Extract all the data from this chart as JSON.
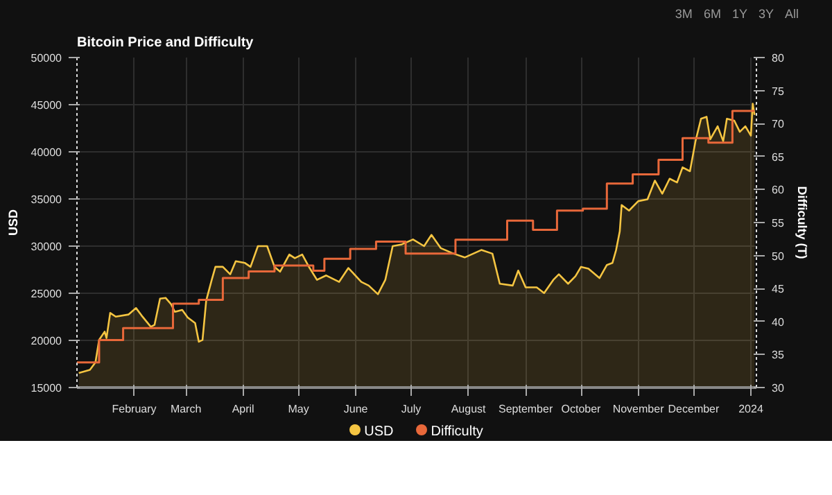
{
  "chart_data": {
    "type": "area",
    "title": "Bitcoin Price and Difficulty",
    "ylabel": "USD",
    "y2label": "Difficulty (T)",
    "annotations": [
      "3M",
      "6M",
      "1Y",
      "3Y",
      "All"
    ],
    "xlim": [
      "2023-01-01",
      "2024-01-04"
    ],
    "xticks": [
      {
        "value": "2023-02-01",
        "label": "February"
      },
      {
        "value": "2023-03-01",
        "label": "March"
      },
      {
        "value": "2023-04-01",
        "label": "April"
      },
      {
        "value": "2023-05-01",
        "label": "May"
      },
      {
        "value": "2023-06-01",
        "label": "June"
      },
      {
        "value": "2023-07-01",
        "label": "July"
      },
      {
        "value": "2023-08-01",
        "label": "August"
      },
      {
        "value": "2023-09-01",
        "label": "September"
      },
      {
        "value": "2023-10-01",
        "label": "October"
      },
      {
        "value": "2023-11-01",
        "label": "November"
      },
      {
        "value": "2023-12-01",
        "label": "December"
      },
      {
        "value": "2024-01-01",
        "label": "2024"
      }
    ],
    "ylim": [
      15000,
      50000
    ],
    "yticks": [
      15000,
      20000,
      25000,
      30000,
      35000,
      40000,
      45000,
      50000
    ],
    "y2lim": [
      30,
      80
    ],
    "y2ticks": [
      30,
      35,
      40,
      45,
      50,
      55,
      60,
      65,
      70,
      75,
      80
    ],
    "grid": true,
    "legend": "bottom",
    "marker": "none",
    "line_style": "solid",
    "series": [
      {
        "name": "USD",
        "color": "#f5c542",
        "x": [
          "2023-01-02",
          "2023-01-08",
          "2023-01-11",
          "2023-01-13",
          "2023-01-16",
          "2023-01-17",
          "2023-01-19",
          "2023-01-22",
          "2023-01-29",
          "2023-02-02",
          "2023-02-05",
          "2023-02-10",
          "2023-02-12",
          "2023-02-15",
          "2023-02-18",
          "2023-02-21",
          "2023-02-23",
          "2023-02-27",
          "2023-03-02",
          "2023-03-06",
          "2023-03-08",
          "2023-03-10",
          "2023-03-12",
          "2023-03-15",
          "2023-03-17",
          "2023-03-21",
          "2023-03-25",
          "2023-03-28",
          "2023-04-02",
          "2023-04-05",
          "2023-04-09",
          "2023-04-14",
          "2023-04-18",
          "2023-04-21",
          "2023-04-26",
          "2023-04-29",
          "2023-05-03",
          "2023-05-07",
          "2023-05-11",
          "2023-05-16",
          "2023-05-23",
          "2023-05-28",
          "2023-06-04",
          "2023-06-08",
          "2023-06-13",
          "2023-06-17",
          "2023-06-21",
          "2023-06-26",
          "2023-07-02",
          "2023-07-08",
          "2023-07-12",
          "2023-07-17",
          "2023-07-24",
          "2023-07-30",
          "2023-08-08",
          "2023-08-14",
          "2023-08-18",
          "2023-08-25",
          "2023-08-28",
          "2023-09-01",
          "2023-09-07",
          "2023-09-11",
          "2023-09-16",
          "2023-09-19",
          "2023-09-24",
          "2023-09-28",
          "2023-10-01",
          "2023-10-05",
          "2023-10-11",
          "2023-10-15",
          "2023-10-18",
          "2023-10-20",
          "2023-10-22",
          "2023-10-23",
          "2023-10-27",
          "2023-11-01",
          "2023-11-06",
          "2023-11-10",
          "2023-11-14",
          "2023-11-18",
          "2023-11-22",
          "2023-11-25",
          "2023-11-29",
          "2023-12-02",
          "2023-12-05",
          "2023-12-08",
          "2023-12-10",
          "2023-12-14",
          "2023-12-17",
          "2023-12-19",
          "2023-12-23",
          "2023-12-26",
          "2023-12-29",
          "2024-01-01",
          "2024-01-02",
          "2024-01-03"
        ],
        "values": [
          16550,
          16870,
          17660,
          20050,
          20930,
          20250,
          22910,
          22520,
          22750,
          23430,
          22640,
          21440,
          21640,
          24430,
          24510,
          23830,
          23030,
          23230,
          22430,
          21840,
          19860,
          20050,
          24220,
          26420,
          27800,
          27800,
          27010,
          28400,
          28210,
          27800,
          30000,
          30000,
          27800,
          27290,
          29110,
          28720,
          29110,
          27680,
          26420,
          26890,
          26210,
          27680,
          26210,
          25820,
          24900,
          26420,
          30000,
          30190,
          30710,
          30000,
          31190,
          29790,
          29200,
          28800,
          29590,
          29200,
          26010,
          25820,
          27410,
          25620,
          25620,
          25020,
          26420,
          27010,
          26010,
          26810,
          27800,
          27610,
          26610,
          28000,
          28210,
          29590,
          31580,
          34360,
          33770,
          34770,
          34960,
          36950,
          35560,
          37150,
          36750,
          38350,
          37940,
          41130,
          43510,
          43720,
          41330,
          42710,
          41130,
          43510,
          43310,
          42120,
          42710,
          41720,
          45100,
          43910
        ]
      },
      {
        "name": "Difficulty",
        "type": "step",
        "axis": "y2",
        "color": "#e8683a",
        "x": [
          "2023-01-01",
          "2023-01-13",
          "2023-01-26",
          "2023-02-22",
          "2023-03-08",
          "2023-03-21",
          "2023-04-04",
          "2023-04-18",
          "2023-05-09",
          "2023-05-15",
          "2023-05-29",
          "2023-06-12",
          "2023-06-28",
          "2023-07-25",
          "2023-08-22",
          "2023-09-05",
          "2023-09-18",
          "2023-10-02",
          "2023-10-15",
          "2023-10-29",
          "2023-11-12",
          "2023-11-25",
          "2023-12-09",
          "2023-12-22",
          "2024-01-03"
        ],
        "values": [
          33.8,
          37.2,
          39.0,
          42.7,
          43.3,
          46.6,
          47.6,
          48.5,
          47.7,
          49.5,
          51.0,
          52.1,
          50.3,
          52.4,
          55.3,
          53.9,
          56.8,
          57.1,
          60.9,
          62.3,
          64.5,
          67.8,
          67.1,
          71.9,
          71.9
        ]
      }
    ]
  }
}
